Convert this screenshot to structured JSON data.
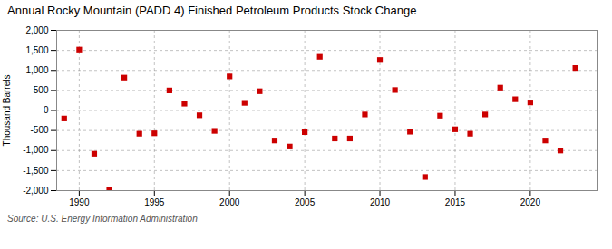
{
  "chart_data": {
    "type": "scatter",
    "title": "Annual Rocky Mountain (PADD 4) Finished Petroleum Products Stock Change",
    "ylabel": "Thousand Barrels",
    "source": "Source: U.S. Energy Information Administration",
    "x": [
      1989,
      1990,
      1991,
      1992,
      1993,
      1994,
      1995,
      1996,
      1997,
      1998,
      1999,
      2000,
      2001,
      2002,
      2003,
      2004,
      2005,
      2006,
      2007,
      2008,
      2009,
      2010,
      2011,
      2012,
      2013,
      2014,
      2015,
      2016,
      2017,
      2018,
      2019,
      2020,
      2021,
      2022,
      2023
    ],
    "values": [
      -200,
      1520,
      -1080,
      -1970,
      820,
      -580,
      -570,
      500,
      170,
      -120,
      -510,
      850,
      190,
      480,
      -750,
      -900,
      -540,
      1340,
      -700,
      -700,
      -100,
      1260,
      510,
      -530,
      -1660,
      -130,
      -470,
      -580,
      -100,
      570,
      280,
      200,
      -750,
      -1000,
      1060
    ],
    "color": "#cc0000",
    "marker": "square",
    "xlim": [
      1988.5,
      2024.5
    ],
    "xticks": [
      1990,
      1995,
      2000,
      2005,
      2010,
      2015,
      2020
    ],
    "ylim": [
      -2000,
      2000
    ],
    "yticks": [
      {
        "value": -2000,
        "label": "-2,000"
      },
      {
        "value": -1500,
        "label": "-1,500"
      },
      {
        "value": -1000,
        "label": "-1,000"
      },
      -500,
      0,
      500,
      {
        "value": 1000,
        "label": "1,000"
      },
      {
        "value": 1500,
        "label": "1,500"
      },
      {
        "value": 2000,
        "label": "2,000"
      }
    ],
    "grid": true
  }
}
